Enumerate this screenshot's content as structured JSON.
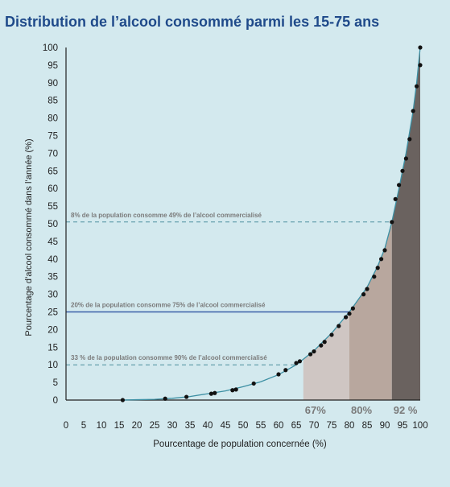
{
  "chart_data": {
    "type": "area",
    "title": "Distribution de l’alcool consommé parmi les 15-75 ans",
    "xlabel": "Pourcentage de population concernée (%)",
    "ylabel": "Pourcentage d’alcool consommé dans l’année (%)",
    "xlim": [
      0,
      100
    ],
    "ylim": [
      0,
      100
    ],
    "xticks": [
      "0",
      "5",
      "10",
      "15",
      "20",
      "25",
      "30",
      "35",
      "40",
      "45",
      "50",
      "55",
      "60",
      "65",
      "70",
      "75",
      "80",
      "85",
      "90",
      "95",
      "100"
    ],
    "yticks": [
      "0",
      "5",
      "10",
      "15",
      "20",
      "25",
      "30",
      "35",
      "40",
      "45",
      "50",
      "55",
      "60",
      "65",
      "70",
      "75",
      "80",
      "85",
      "90",
      "95",
      "100"
    ],
    "curve": [
      [
        16,
        0
      ],
      [
        20,
        0.1
      ],
      [
        25,
        0.2
      ],
      [
        28,
        0.4
      ],
      [
        30,
        0.5
      ],
      [
        35,
        1
      ],
      [
        40,
        1.8
      ],
      [
        45,
        2.6
      ],
      [
        50,
        3.8
      ],
      [
        55,
        5.2
      ],
      [
        60,
        7.2
      ],
      [
        65,
        10
      ],
      [
        70,
        14
      ],
      [
        75,
        19
      ],
      [
        80,
        25
      ],
      [
        85,
        32
      ],
      [
        88,
        38
      ],
      [
        90,
        43
      ],
      [
        92,
        50.5
      ],
      [
        94,
        60
      ],
      [
        96,
        70
      ],
      [
        98,
        82
      ],
      [
        99,
        90
      ],
      [
        100,
        100
      ]
    ],
    "points": [
      [
        16,
        0
      ],
      [
        28,
        0.4
      ],
      [
        34,
        0.9
      ],
      [
        41,
        1.8
      ],
      [
        42,
        2
      ],
      [
        47,
        2.8
      ],
      [
        48,
        3
      ],
      [
        53,
        4.7
      ],
      [
        60,
        7.3
      ],
      [
        62,
        8.5
      ],
      [
        65,
        10.5
      ],
      [
        66,
        11
      ],
      [
        69,
        13
      ],
      [
        70,
        13.8
      ],
      [
        72,
        15.5
      ],
      [
        73,
        16.5
      ],
      [
        75,
        18.5
      ],
      [
        77,
        21
      ],
      [
        79,
        23.5
      ],
      [
        80,
        24.5
      ],
      [
        81,
        26
      ],
      [
        84,
        30
      ],
      [
        85,
        31.5
      ],
      [
        87,
        35
      ],
      [
        88,
        37.5
      ],
      [
        89,
        40
      ],
      [
        90,
        42.5
      ],
      [
        92,
        50.5
      ],
      [
        93,
        57
      ],
      [
        94,
        61
      ],
      [
        95,
        65
      ],
      [
        96,
        68.5
      ],
      [
        97,
        74
      ],
      [
        98,
        82
      ],
      [
        99,
        89
      ],
      [
        100,
        95
      ],
      [
        100,
        100
      ]
    ],
    "regions": [
      {
        "from": 67,
        "to": 80,
        "color": "#cfc6c3"
      },
      {
        "from": 80,
        "to": 92,
        "color": "#b8a79e"
      },
      {
        "from": 92,
        "to": 100,
        "color": "#6a625f"
      }
    ],
    "region_labels": [
      {
        "text": "67%",
        "x": 67
      },
      {
        "text": "80%",
        "x": 80
      },
      {
        "text": "92 %",
        "x": 92
      }
    ],
    "reference_lines": [
      {
        "y": 50.5,
        "text": "8% de la population consomme 49% de l’alcool commercialisé",
        "style": "dashed",
        "color": "#4c8f9e"
      },
      {
        "y": 25,
        "text": "20% de la population consomme 75% de l’alcool commercialisé",
        "style": "solid",
        "color": "#3a5fa8"
      },
      {
        "y": 10,
        "text": "33 % de la population consomme 90% de l’alcool commercialisé",
        "style": "dashed",
        "color": "#4c8f9e"
      }
    ],
    "grid": false,
    "legend": "none",
    "colors": {
      "background": "#d3e9ee",
      "curve": "#3c8fa3",
      "title": "#1f4a8a",
      "axis": "#222222",
      "annotation": "#7a7a7a",
      "point": "#111111"
    }
  }
}
